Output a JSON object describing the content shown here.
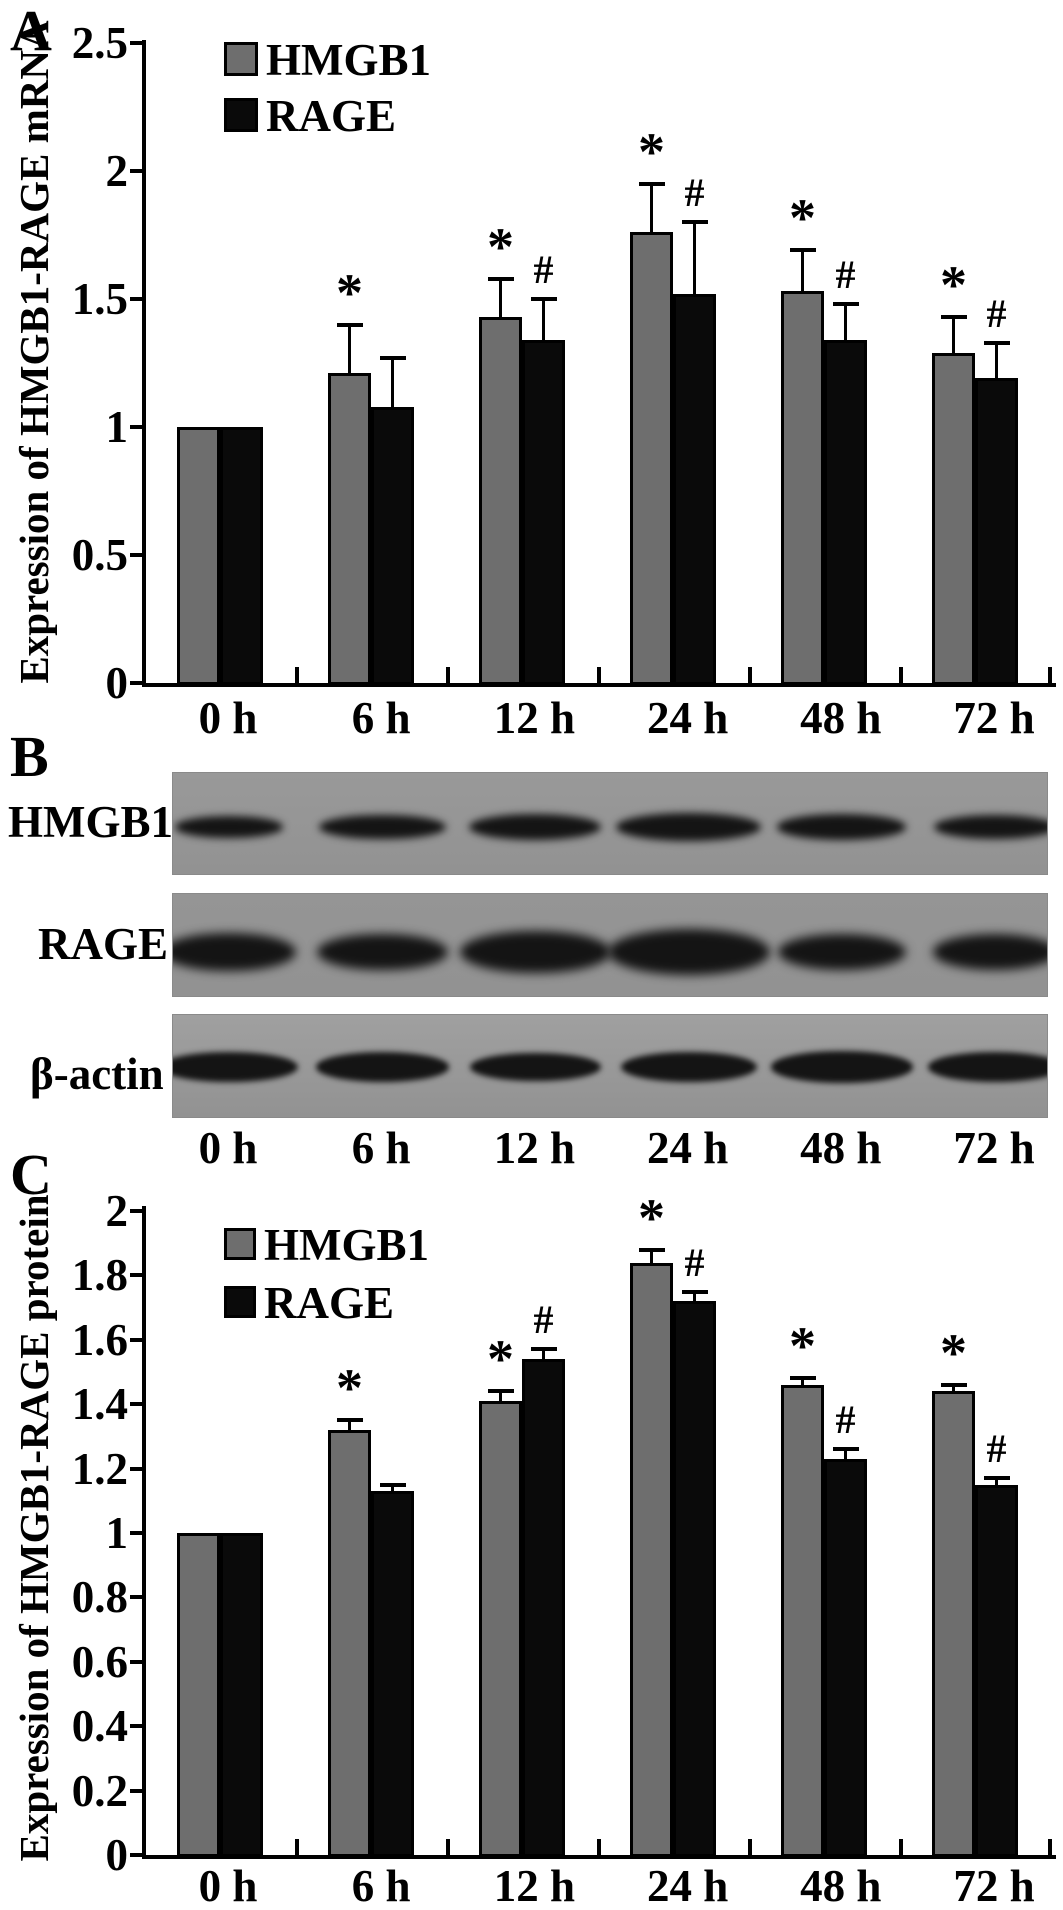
{
  "figure": {
    "background": "#ffffff",
    "bar_outline_color": "#000000",
    "hmgb1_bar_color": "#6e6e6e",
    "rage_bar_color": "#0a0a0a"
  },
  "panels": {
    "a": {
      "letter": "A"
    },
    "b": {
      "letter": "B"
    },
    "c": {
      "letter": "C"
    }
  },
  "blot": {
    "row_labels": [
      "HMGB1",
      "RAGE",
      "β-actin"
    ],
    "lanes": [
      "0 h",
      "6 h",
      "12 h",
      "24 h",
      "48 h",
      "72 h"
    ],
    "strip_backgrounds": [
      "#999999",
      "#959595",
      "#a0a0a0"
    ],
    "band_color": "#141414",
    "band_intensity": [
      [
        0.82,
        0.96,
        1.0,
        1.1,
        0.98,
        0.92
      ],
      [
        0.95,
        0.92,
        1.06,
        1.14,
        0.9,
        0.88
      ],
      [
        1.02,
        0.98,
        0.96,
        1.0,
        1.04,
        0.98
      ]
    ]
  },
  "chart_data": [
    {
      "id": "A",
      "type": "bar",
      "title": "",
      "ylabel": "Expression of HMGB1-RAGE mRNA",
      "xlabel": "",
      "categories": [
        "0 h",
        "6 h",
        "12 h",
        "24 h",
        "48 h",
        "72 h"
      ],
      "series": [
        {
          "name": "HMGB1",
          "color": "#6e6e6e",
          "values": [
            1.0,
            1.21,
            1.43,
            1.76,
            1.53,
            1.29
          ],
          "errors": [
            0,
            0.19,
            0.15,
            0.19,
            0.16,
            0.14
          ],
          "sig": [
            "",
            "*",
            "*",
            "*",
            "*",
            "*"
          ]
        },
        {
          "name": "RAGE",
          "color": "#0a0a0a",
          "values": [
            1.0,
            1.08,
            1.34,
            1.52,
            1.34,
            1.19
          ],
          "errors": [
            0,
            0.19,
            0.16,
            0.28,
            0.14,
            0.14
          ],
          "sig": [
            "",
            "",
            "#",
            "#",
            "#",
            "#"
          ]
        }
      ],
      "ylim": [
        0,
        2.5
      ],
      "yticks": [
        "0",
        "0.5",
        "1",
        "1.5",
        "2",
        "2.5"
      ],
      "ytick_values": [
        0,
        0.5,
        1,
        1.5,
        2,
        2.5
      ],
      "grid": false,
      "legend_position": "top-left-inside"
    },
    {
      "id": "C",
      "type": "bar",
      "title": "",
      "ylabel": "Expression of HMGB1-RAGE protein",
      "xlabel": "",
      "categories": [
        "0 h",
        "6 h",
        "12 h",
        "24 h",
        "48 h",
        "72 h"
      ],
      "series": [
        {
          "name": "HMGB1",
          "color": "#6e6e6e",
          "values": [
            1.0,
            1.32,
            1.41,
            1.84,
            1.46,
            1.44
          ],
          "errors": [
            0,
            0.03,
            0.03,
            0.04,
            0.02,
            0.02
          ],
          "sig": [
            "",
            "*",
            "*",
            "*",
            "*",
            "*"
          ]
        },
        {
          "name": "RAGE",
          "color": "#0a0a0a",
          "values": [
            1.0,
            1.13,
            1.54,
            1.72,
            1.23,
            1.15
          ],
          "errors": [
            0,
            0.02,
            0.03,
            0.03,
            0.03,
            0.02
          ],
          "sig": [
            "",
            "",
            "#",
            "#",
            "#",
            "#"
          ]
        }
      ],
      "ylim": [
        0,
        2
      ],
      "yticks": [
        "0",
        "0.2",
        "0.4",
        "0.6",
        "0.8",
        "1",
        "1.2",
        "1.4",
        "1.6",
        "1.8",
        "2"
      ],
      "ytick_values": [
        0,
        0.2,
        0.4,
        0.6,
        0.8,
        1,
        1.2,
        1.4,
        1.6,
        1.8,
        2
      ],
      "grid": false,
      "legend_position": "top-left-inside"
    }
  ]
}
